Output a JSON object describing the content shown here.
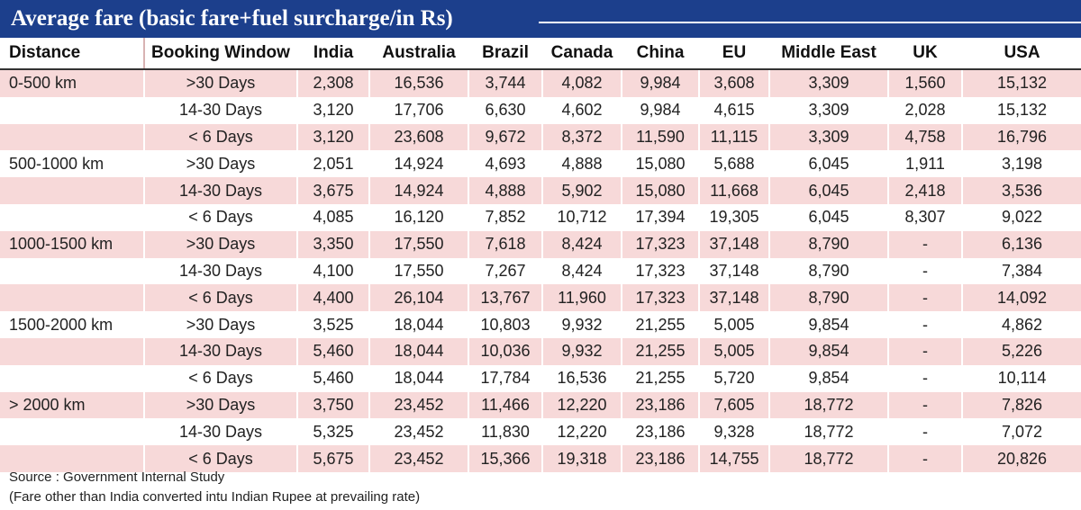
{
  "title": "Average fare (basic fare+fuel surcharge/in Rs)",
  "columns": [
    "Distance",
    "Booking Window",
    "India",
    "Australia",
    "Brazil",
    "Canada",
    "China",
    "EU",
    "Middle East",
    "UK",
    "USA"
  ],
  "rows": [
    [
      "0-500 km",
      ">30 Days",
      "2,308",
      "16,536",
      "3,744",
      "4,082",
      "9,984",
      "3,608",
      "3,309",
      "1,560",
      "15,132"
    ],
    [
      "",
      "14-30 Days",
      "3,120",
      "17,706",
      "6,630",
      "4,602",
      "9,984",
      "4,615",
      "3,309",
      "2,028",
      "15,132"
    ],
    [
      "",
      "< 6 Days",
      "3,120",
      "23,608",
      "9,672",
      "8,372",
      "11,590",
      "11,115",
      "3,309",
      "4,758",
      "16,796"
    ],
    [
      "500-1000 km",
      ">30 Days",
      "2,051",
      "14,924",
      "4,693",
      "4,888",
      "15,080",
      "5,688",
      "6,045",
      "1,911",
      "3,198"
    ],
    [
      "",
      "14-30 Days",
      "3,675",
      "14,924",
      "4,888",
      "5,902",
      "15,080",
      "11,668",
      "6,045",
      "2,418",
      "3,536"
    ],
    [
      "",
      "< 6 Days",
      "4,085",
      "16,120",
      "7,852",
      "10,712",
      "17,394",
      "19,305",
      "6,045",
      "8,307",
      "9,022"
    ],
    [
      "1000-1500 km",
      ">30 Days",
      "3,350",
      "17,550",
      "7,618",
      "8,424",
      "17,323",
      "37,148",
      "8,790",
      "-",
      "6,136"
    ],
    [
      "",
      "14-30 Days",
      "4,100",
      "17,550",
      "7,267",
      "8,424",
      "17,323",
      "37,148",
      "8,790",
      "-",
      "7,384"
    ],
    [
      "",
      "< 6 Days",
      "4,400",
      "26,104",
      "13,767",
      "11,960",
      "17,323",
      "37,148",
      "8,790",
      "-",
      "14,092"
    ],
    [
      "1500-2000 km",
      ">30 Days",
      "3,525",
      "18,044",
      "10,803",
      "9,932",
      "21,255",
      "5,005",
      "9,854",
      "-",
      "4,862"
    ],
    [
      "",
      "14-30 Days",
      "5,460",
      "18,044",
      "10,036",
      "9,932",
      "21,255",
      "5,005",
      "9,854",
      "-",
      "5,226"
    ],
    [
      "",
      "< 6 Days",
      "5,460",
      "18,044",
      "17,784",
      "16,536",
      "21,255",
      "5,720",
      "9,854",
      "-",
      "10,114"
    ],
    [
      "> 2000 km",
      ">30 Days",
      "3,750",
      "23,452",
      "11,466",
      "12,220",
      "23,186",
      "7,605",
      "18,772",
      "-",
      "7,826"
    ],
    [
      "",
      "14-30 Days",
      "5,325",
      "23,452",
      "11,830",
      "12,220",
      "23,186",
      "9,328",
      "18,772",
      "-",
      "7,072"
    ],
    [
      "",
      "< 6 Days",
      "5,675",
      "23,452",
      "15,366",
      "19,318",
      "23,186",
      "14,755",
      "18,772",
      "-",
      "20,826"
    ]
  ],
  "footer": {
    "source": "Source : Government Internal Study",
    "note": "(Fare other than India converted intu Indian Rupee at prevailing rate)"
  },
  "colors": {
    "title_bg": "#1c3f8c",
    "row_shade": "#f7d9d9"
  }
}
